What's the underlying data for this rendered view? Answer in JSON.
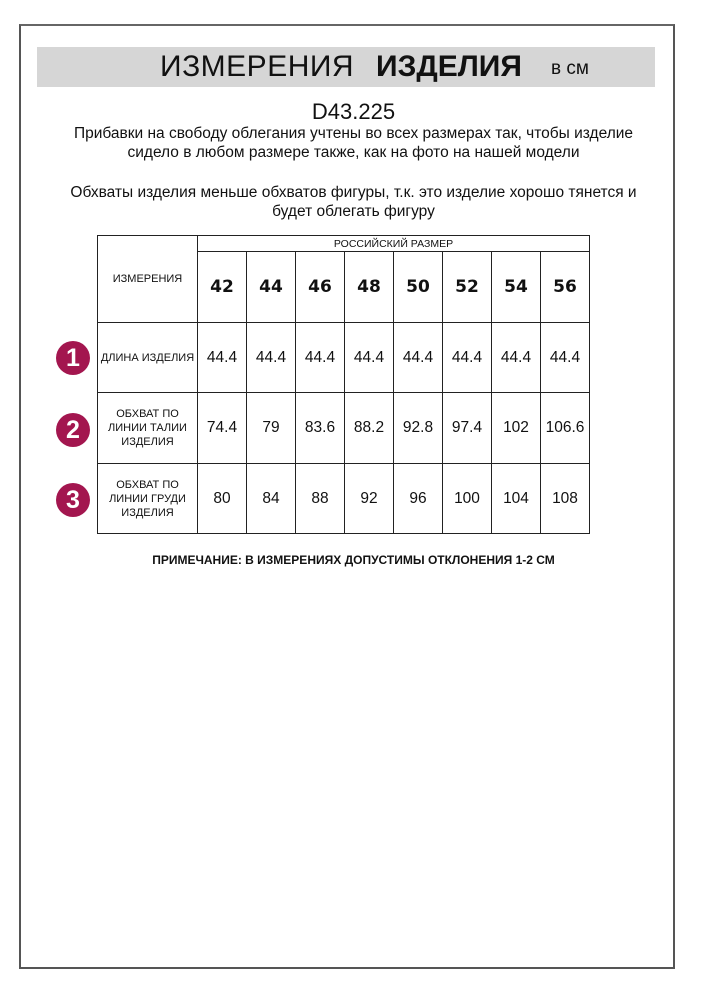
{
  "header": {
    "title_regular": "ИЗМЕРЕНИЯ",
    "title_bold": "ИЗДЕЛИЯ",
    "unit": "в см"
  },
  "article": "D43.225",
  "paragraphs": [
    "Прибавки на свободу облегания учтены во всех размерах так, чтобы изделие сидело в любом размере также, как на фото на нашей модели",
    "Обхваты изделия меньше обхватов фигуры, т.к. это изделие хорошо тянется и будет облегать фигуру"
  ],
  "table": {
    "measure_header": "ИЗМЕРЕНИЯ",
    "size_group_header": "РОССИЙСКИЙ РАЗМЕР",
    "sizes": [
      "42",
      "44",
      "46",
      "48",
      "50",
      "52",
      "54",
      "56"
    ],
    "rows": [
      {
        "number": "1",
        "label": "ДЛИНА ИЗДЕЛИЯ",
        "values": [
          "44.4",
          "44.4",
          "44.4",
          "44.4",
          "44.4",
          "44.4",
          "44.4",
          "44.4"
        ]
      },
      {
        "number": "2",
        "label": "ОБХВАТ ПО ЛИНИИ ТАЛИИ ИЗДЕЛИЯ",
        "values": [
          "74.4",
          "79",
          "83.6",
          "88.2",
          "92.8",
          "97.4",
          "102",
          "106.6"
        ]
      },
      {
        "number": "3",
        "label": "ОБХВАТ ПО ЛИНИИ ГРУДИ ИЗДЕЛИЯ",
        "values": [
          "80",
          "84",
          "88",
          "92",
          "96",
          "100",
          "104",
          "108"
        ]
      }
    ]
  },
  "note": "ПРИМЕЧАНИЕ: В ИЗМЕРЕНИЯХ ДОПУСТИМЫ ОТКЛОНЕНИЯ 1-2 СМ",
  "colors": {
    "accent": "#a3164f",
    "banner": "#d6d6d6"
  }
}
